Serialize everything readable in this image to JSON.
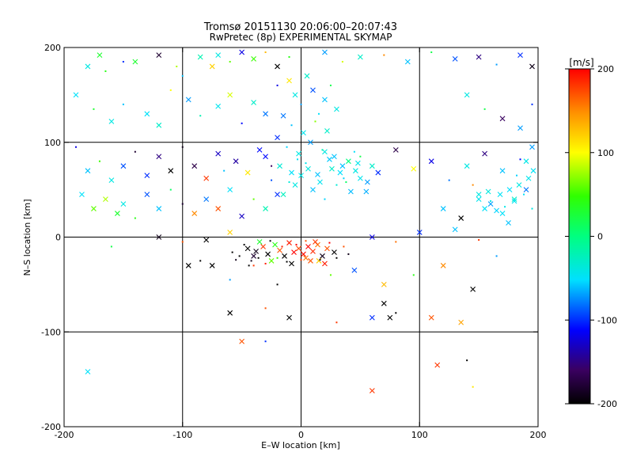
{
  "chart_data": {
    "type": "scatter",
    "title": "Tromsø 20151130 20:06:00–20:07:43",
    "subtitle": "RwPretec (8p) EXPERIMENTAL SKYMAP",
    "xlabel": "E–W location [km]",
    "ylabel": "N–S location [km]",
    "xlim": [
      -200,
      200
    ],
    "ylim": [
      -200,
      200
    ],
    "xticks": [
      -200,
      -100,
      0,
      100,
      200
    ],
    "yticks": [
      -200,
      -100,
      0,
      100,
      200
    ],
    "grid": true,
    "colorbar": {
      "label": "[m/s]",
      "range": [
        -200,
        200
      ],
      "ticks": [
        200,
        100,
        0,
        -100,
        -200
      ],
      "colormap": "rainbow (black-purple-blue-cyan-green-yellow-red)"
    },
    "marker_types": [
      "x",
      "dot"
    ],
    "points": [
      [
        -180,
        180,
        -40,
        "x"
      ],
      [
        -170,
        192,
        30,
        "x"
      ],
      [
        -165,
        175,
        40,
        "d"
      ],
      [
        -150,
        185,
        -100,
        "d"
      ],
      [
        -140,
        185,
        30,
        "x"
      ],
      [
        -120,
        192,
        -180,
        "x"
      ],
      [
        -105,
        180,
        80,
        "d"
      ],
      [
        -100,
        170,
        -60,
        "d"
      ],
      [
        -85,
        190,
        -20,
        "x"
      ],
      [
        -75,
        180,
        120,
        "x"
      ],
      [
        -70,
        192,
        -40,
        "x"
      ],
      [
        -60,
        185,
        60,
        "d"
      ],
      [
        -50,
        195,
        -120,
        "x"
      ],
      [
        -40,
        188,
        50,
        "x"
      ],
      [
        -30,
        195,
        130,
        "d"
      ],
      [
        -20,
        180,
        -200,
        "x"
      ],
      [
        -10,
        190,
        40,
        "d"
      ],
      [
        20,
        195,
        -70,
        "x"
      ],
      [
        35,
        185,
        90,
        "d"
      ],
      [
        50,
        190,
        -30,
        "x"
      ],
      [
        70,
        192,
        150,
        "d"
      ],
      [
        90,
        185,
        -60,
        "x"
      ],
      [
        110,
        195,
        20,
        "d"
      ],
      [
        130,
        188,
        -90,
        "x"
      ],
      [
        150,
        190,
        -150,
        "x"
      ],
      [
        165,
        182,
        -70,
        "d"
      ],
      [
        185,
        192,
        -100,
        "x"
      ],
      [
        195,
        180,
        -190,
        "x"
      ],
      [
        -190,
        150,
        -50,
        "x"
      ],
      [
        -175,
        135,
        30,
        "d"
      ],
      [
        -160,
        122,
        -40,
        "x"
      ],
      [
        -150,
        140,
        -60,
        "d"
      ],
      [
        -130,
        130,
        -50,
        "x"
      ],
      [
        -120,
        118,
        -30,
        "x"
      ],
      [
        -110,
        155,
        100,
        "d"
      ],
      [
        -95,
        145,
        -70,
        "x"
      ],
      [
        -85,
        128,
        -20,
        "d"
      ],
      [
        -70,
        138,
        -45,
        "x"
      ],
      [
        -60,
        150,
        90,
        "x"
      ],
      [
        -50,
        120,
        -110,
        "d"
      ],
      [
        -40,
        142,
        -30,
        "x"
      ],
      [
        -30,
        130,
        -80,
        "x"
      ],
      [
        -20,
        160,
        -120,
        "d"
      ],
      [
        140,
        150,
        -40,
        "x"
      ],
      [
        155,
        135,
        20,
        "d"
      ],
      [
        170,
        125,
        -160,
        "x"
      ],
      [
        185,
        115,
        -70,
        "x"
      ],
      [
        195,
        140,
        -100,
        "d"
      ],
      [
        -190,
        95,
        -120,
        "d"
      ],
      [
        -180,
        70,
        -60,
        "x"
      ],
      [
        -170,
        80,
        50,
        "d"
      ],
      [
        -160,
        60,
        -40,
        "x"
      ],
      [
        -150,
        75,
        -90,
        "x"
      ],
      [
        -140,
        90,
        -180,
        "d"
      ],
      [
        -130,
        65,
        -100,
        "x"
      ],
      [
        -120,
        85,
        -150,
        "x"
      ],
      [
        -110,
        70,
        -200,
        "x"
      ],
      [
        -100,
        95,
        -190,
        "d"
      ],
      [
        -90,
        75,
        -170,
        "x"
      ],
      [
        -80,
        62,
        180,
        "x"
      ],
      [
        -70,
        88,
        -130,
        "x"
      ],
      [
        -65,
        70,
        -60,
        "d"
      ],
      [
        -55,
        80,
        -140,
        "x"
      ],
      [
        -45,
        68,
        110,
        "x"
      ],
      [
        -35,
        92,
        -110,
        "x"
      ],
      [
        -25,
        75,
        -160,
        "d"
      ],
      [
        -185,
        45,
        -50,
        "x"
      ],
      [
        -175,
        30,
        60,
        "x"
      ],
      [
        -165,
        40,
        80,
        "x"
      ],
      [
        -155,
        25,
        30,
        "x"
      ],
      [
        -150,
        35,
        -40,
        "x"
      ],
      [
        -140,
        20,
        40,
        "d"
      ],
      [
        -130,
        45,
        -90,
        "x"
      ],
      [
        -120,
        30,
        -60,
        "x"
      ],
      [
        -110,
        50,
        10,
        "d"
      ],
      [
        -100,
        35,
        -180,
        "d"
      ],
      [
        -90,
        25,
        150,
        "x"
      ],
      [
        -80,
        40,
        -80,
        "x"
      ],
      [
        -70,
        30,
        170,
        "x"
      ],
      [
        -60,
        50,
        -50,
        "x"
      ],
      [
        -50,
        22,
        -130,
        "x"
      ],
      [
        -40,
        40,
        60,
        "d"
      ],
      [
        -30,
        30,
        -20,
        "x"
      ],
      [
        -20,
        45,
        -100,
        "x"
      ],
      [
        20,
        90,
        -40,
        "x"
      ],
      [
        35,
        75,
        -60,
        "x"
      ],
      [
        50,
        85,
        20,
        "d"
      ],
      [
        65,
        68,
        -100,
        "x"
      ],
      [
        80,
        92,
        -170,
        "x"
      ],
      [
        95,
        72,
        100,
        "x"
      ],
      [
        110,
        80,
        -120,
        "x"
      ],
      [
        125,
        60,
        -80,
        "d"
      ],
      [
        140,
        75,
        -40,
        "x"
      ],
      [
        155,
        88,
        -150,
        "x"
      ],
      [
        170,
        70,
        -60,
        "x"
      ],
      [
        185,
        82,
        -110,
        "d"
      ],
      [
        195,
        95,
        -70,
        "x"
      ],
      [
        120,
        30,
        -60,
        "x"
      ],
      [
        135,
        20,
        -200,
        "x"
      ],
      [
        150,
        45,
        -40,
        "x"
      ],
      [
        160,
        35,
        -70,
        "x"
      ],
      [
        170,
        25,
        -50,
        "x"
      ],
      [
        180,
        40,
        -30,
        "x"
      ],
      [
        190,
        50,
        -80,
        "x"
      ],
      [
        195,
        30,
        -40,
        "d"
      ],
      [
        145,
        55,
        150,
        "d"
      ],
      [
        175,
        15,
        -60,
        "x"
      ],
      [
        -160,
        -10,
        20,
        "d"
      ],
      [
        -120,
        0,
        -190,
        "x"
      ],
      [
        -100,
        -5,
        170,
        "d"
      ],
      [
        -80,
        -3,
        -200,
        "x"
      ],
      [
        -60,
        5,
        120,
        "x"
      ],
      [
        60,
        0,
        -120,
        "x"
      ],
      [
        80,
        -5,
        160,
        "d"
      ],
      [
        100,
        5,
        -100,
        "x"
      ],
      [
        130,
        8,
        -60,
        "x"
      ],
      [
        150,
        -3,
        180,
        "d"
      ],
      [
        -95,
        -30,
        -200,
        "x"
      ],
      [
        -85,
        -25,
        -200,
        "d"
      ],
      [
        -75,
        -30,
        -200,
        "x"
      ],
      [
        -60,
        -45,
        -70,
        "d"
      ],
      [
        -40,
        -30,
        180,
        "d"
      ],
      [
        -20,
        -50,
        -200,
        "d"
      ],
      [
        15,
        -25,
        120,
        "x"
      ],
      [
        25,
        -40,
        60,
        "d"
      ],
      [
        45,
        -35,
        -90,
        "x"
      ],
      [
        70,
        -50,
        130,
        "x"
      ],
      [
        95,
        -40,
        40,
        "d"
      ],
      [
        120,
        -30,
        150,
        "x"
      ],
      [
        145,
        -55,
        -200,
        "x"
      ],
      [
        165,
        -20,
        -70,
        "d"
      ],
      [
        -60,
        -80,
        -200,
        "x"
      ],
      [
        -30,
        -75,
        170,
        "d"
      ],
      [
        -10,
        -85,
        -200,
        "x"
      ],
      [
        30,
        -90,
        180,
        "d"
      ],
      [
        60,
        -85,
        -100,
        "x"
      ],
      [
        70,
        -70,
        -200,
        "x"
      ],
      [
        75,
        -85,
        -200,
        "x"
      ],
      [
        80,
        -80,
        -200,
        "d"
      ],
      [
        110,
        -85,
        170,
        "x"
      ],
      [
        135,
        -90,
        140,
        "x"
      ],
      [
        -180,
        -142,
        -50,
        "x"
      ],
      [
        -50,
        -110,
        170,
        "x"
      ],
      [
        -30,
        -110,
        -100,
        "d"
      ],
      [
        60,
        -162,
        180,
        "x"
      ],
      [
        115,
        -135,
        180,
        "x"
      ],
      [
        140,
        -130,
        -200,
        "d"
      ],
      [
        145,
        -158,
        110,
        "d"
      ],
      [
        -45,
        -12,
        -200,
        "x"
      ],
      [
        -38,
        -15,
        -190,
        "x"
      ],
      [
        -32,
        -10,
        180,
        "x"
      ],
      [
        -28,
        -18,
        -200,
        "x"
      ],
      [
        -22,
        -8,
        40,
        "x"
      ],
      [
        -18,
        -14,
        170,
        "x"
      ],
      [
        -14,
        -20,
        -200,
        "x"
      ],
      [
        -10,
        -6,
        190,
        "x"
      ],
      [
        -6,
        -16,
        200,
        "x"
      ],
      [
        -2,
        -12,
        175,
        "x"
      ],
      [
        2,
        -18,
        195,
        "x"
      ],
      [
        6,
        -10,
        200,
        "x"
      ],
      [
        10,
        -15,
        185,
        "x"
      ],
      [
        14,
        -8,
        160,
        "x"
      ],
      [
        18,
        -20,
        -190,
        "x"
      ],
      [
        22,
        -12,
        170,
        "x"
      ],
      [
        28,
        -16,
        -200,
        "x"
      ],
      [
        -40,
        -20,
        -180,
        "x"
      ],
      [
        -25,
        -25,
        60,
        "x"
      ],
      [
        -8,
        -28,
        -200,
        "x"
      ],
      [
        8,
        -25,
        170,
        "x"
      ],
      [
        20,
        -28,
        190,
        "x"
      ],
      [
        -35,
        -5,
        30,
        "x"
      ],
      [
        12,
        -5,
        180,
        "x"
      ],
      [
        4,
        -22,
        160,
        "x"
      ],
      [
        -52,
        -20,
        -200,
        "d"
      ],
      [
        -48,
        -8,
        -200,
        "d"
      ],
      [
        -42,
        -25,
        -190,
        "d"
      ],
      [
        -36,
        -22,
        -200,
        "d"
      ],
      [
        -30,
        -28,
        190,
        "d"
      ],
      [
        -26,
        -4,
        -200,
        "d"
      ],
      [
        -20,
        -22,
        50,
        "d"
      ],
      [
        -16,
        -10,
        190,
        "d"
      ],
      [
        -12,
        -26,
        -200,
        "d"
      ],
      [
        -4,
        -8,
        200,
        "d"
      ],
      [
        0,
        -24,
        180,
        "d"
      ],
      [
        4,
        -4,
        170,
        "d"
      ],
      [
        16,
        -24,
        -190,
        "d"
      ],
      [
        24,
        -6,
        200,
        "d"
      ],
      [
        30,
        -22,
        -200,
        "d"
      ],
      [
        -58,
        -16,
        -200,
        "d"
      ],
      [
        -55,
        -24,
        -190,
        "d"
      ],
      [
        -44,
        -30,
        -200,
        "d"
      ],
      [
        36,
        -10,
        170,
        "d"
      ],
      [
        40,
        -18,
        -190,
        "d"
      ],
      [
        -10,
        165,
        110,
        "x"
      ],
      [
        -5,
        150,
        -40,
        "x"
      ],
      [
        0,
        140,
        -70,
        "d"
      ],
      [
        5,
        170,
        -30,
        "x"
      ],
      [
        10,
        155,
        -90,
        "x"
      ],
      [
        15,
        130,
        -50,
        "d"
      ],
      [
        20,
        145,
        -60,
        "x"
      ],
      [
        25,
        160,
        20,
        "d"
      ],
      [
        30,
        135,
        -40,
        "x"
      ],
      [
        -15,
        128,
        -80,
        "x"
      ],
      [
        -8,
        118,
        -60,
        "d"
      ],
      [
        2,
        110,
        -45,
        "x"
      ],
      [
        12,
        122,
        70,
        "d"
      ],
      [
        22,
        112,
        -30,
        "x"
      ],
      [
        -20,
        105,
        -100,
        "x"
      ],
      [
        -12,
        95,
        -55,
        "d"
      ],
      [
        -2,
        88,
        -40,
        "x"
      ],
      [
        8,
        100,
        -70,
        "x"
      ],
      [
        18,
        92,
        -20,
        "d"
      ],
      [
        28,
        85,
        -60,
        "x"
      ],
      [
        -18,
        75,
        -35,
        "x"
      ],
      [
        -8,
        68,
        -50,
        "x"
      ],
      [
        4,
        78,
        -45,
        "d"
      ],
      [
        14,
        66,
        -60,
        "x"
      ],
      [
        26,
        72,
        -30,
        "x"
      ],
      [
        36,
        62,
        -55,
        "d"
      ],
      [
        46,
        70,
        -40,
        "x"
      ],
      [
        56,
        58,
        -70,
        "x"
      ],
      [
        40,
        80,
        0,
        "x"
      ],
      [
        -25,
        60,
        -90,
        "d"
      ],
      [
        -5,
        55,
        -40,
        "x"
      ],
      [
        10,
        50,
        -60,
        "x"
      ],
      [
        30,
        55,
        -35,
        "d"
      ],
      [
        50,
        62,
        -45,
        "x"
      ],
      [
        60,
        75,
        -30,
        "x"
      ],
      [
        -30,
        85,
        -110,
        "x"
      ],
      [
        45,
        90,
        -50,
        "d"
      ],
      [
        55,
        48,
        -65,
        "x"
      ],
      [
        -15,
        45,
        -25,
        "x"
      ],
      [
        20,
        40,
        -55,
        "d"
      ],
      [
        0,
        65,
        -42,
        "x"
      ],
      [
        6,
        72,
        -38,
        "x"
      ],
      [
        -3,
        82,
        -48,
        "d"
      ],
      [
        33,
        68,
        -52,
        "x"
      ],
      [
        38,
        58,
        10,
        "d"
      ],
      [
        16,
        58,
        -46,
        "x"
      ],
      [
        24,
        82,
        -58,
        "x"
      ],
      [
        -10,
        58,
        -36,
        "d"
      ],
      [
        42,
        48,
        -62,
        "x"
      ],
      [
        48,
        78,
        -44,
        "x"
      ],
      [
        150,
        40,
        -45,
        "x"
      ],
      [
        155,
        30,
        -50,
        "x"
      ],
      [
        160,
        38,
        -40,
        "d"
      ],
      [
        165,
        28,
        -55,
        "x"
      ],
      [
        168,
        45,
        -48,
        "x"
      ],
      [
        172,
        32,
        -42,
        "d"
      ],
      [
        176,
        50,
        -52,
        "x"
      ],
      [
        180,
        38,
        -46,
        "x"
      ],
      [
        184,
        55,
        -40,
        "x"
      ],
      [
        188,
        45,
        -50,
        "d"
      ],
      [
        192,
        62,
        -44,
        "x"
      ],
      [
        196,
        70,
        -48,
        "x"
      ],
      [
        158,
        48,
        -38,
        "x"
      ],
      [
        182,
        65,
        -56,
        "d"
      ],
      [
        190,
        80,
        -42,
        "x"
      ]
    ]
  }
}
